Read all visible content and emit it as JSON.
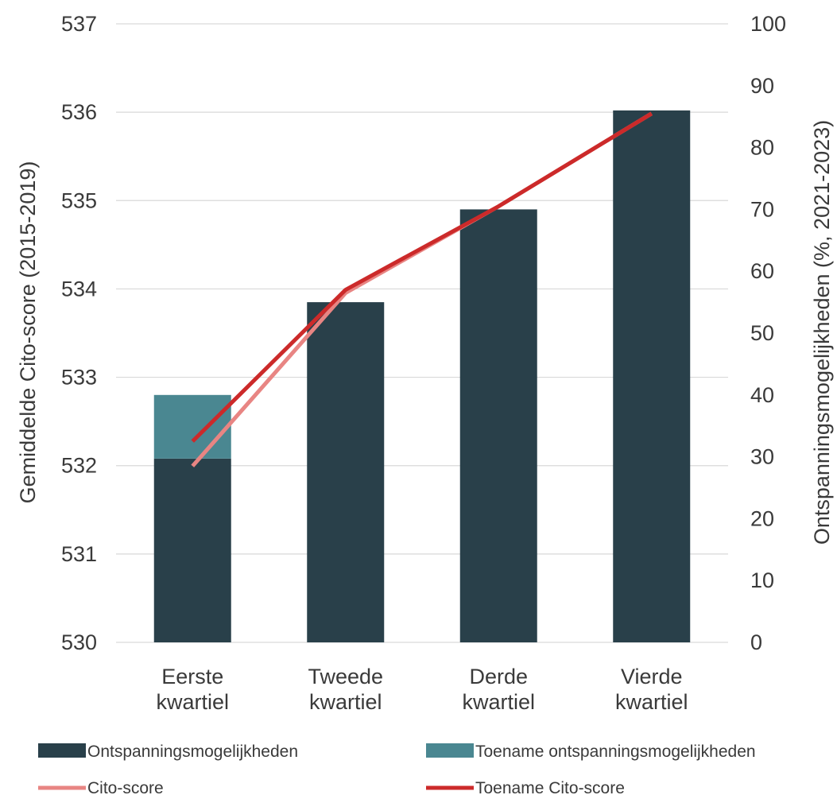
{
  "chart_data": {
    "type": "bar",
    "categories": [
      [
        "Eerste",
        "kwartiel"
      ],
      [
        "Tweede",
        "kwartiel"
      ],
      [
        "Derde",
        "kwartiel"
      ],
      [
        "Vierde",
        "kwartiel"
      ]
    ],
    "ylabel_left": "Gemiddelde Cito-score (2015-2019)",
    "ylabel_right": "Ontspanningsmogelijkheden (%, 2021-2023)",
    "ylim_left": [
      530,
      537
    ],
    "yticks_left": [
      530,
      531,
      532,
      533,
      534,
      535,
      536,
      537
    ],
    "ylim_right": [
      0,
      100
    ],
    "yticks_right": [
      0,
      10,
      20,
      30,
      40,
      50,
      60,
      70,
      80,
      90,
      100
    ],
    "grid": true,
    "legend_position": "bottom",
    "bar_series": [
      {
        "name": "Ontspanningsmogelijkheden",
        "axis": "left",
        "color": "#29404a",
        "values": [
          532.08,
          533.85,
          534.9,
          536.02
        ]
      },
      {
        "name": "Toename ontspanningsmogelijkheden",
        "axis": "left",
        "stacked": true,
        "color": "#4a8791",
        "values": [
          0.72,
          0,
          0,
          0
        ]
      }
    ],
    "line_series": [
      {
        "name": "Cito-score",
        "axis": "right",
        "color": "#e88583",
        "values": [
          28.5,
          56.5,
          70.5,
          85.5
        ]
      },
      {
        "name": "Toename Cito-score",
        "axis": "right",
        "color": "#cc2a2a",
        "values": [
          32.5,
          57,
          70.5,
          85.5
        ]
      }
    ]
  }
}
